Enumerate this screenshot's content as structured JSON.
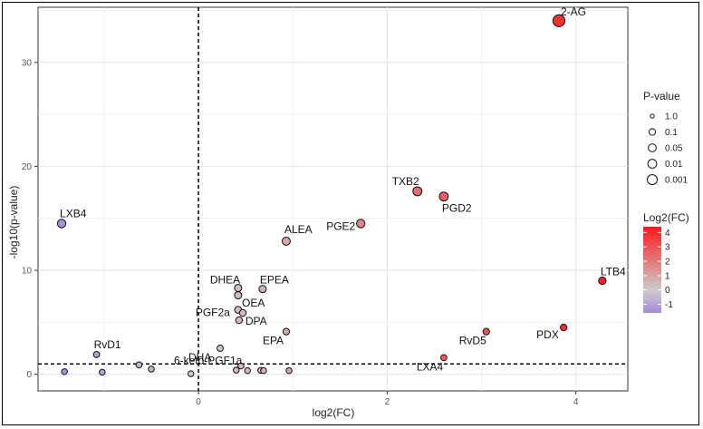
{
  "chart_data": {
    "type": "scatter",
    "xlabel": "log2(FC)",
    "ylabel": "-log10(p-value)",
    "xlim": [
      -1.7,
      4.55
    ],
    "ylim": [
      -1.6,
      35.3
    ],
    "xticks": [
      0,
      2,
      4
    ],
    "yticks": [
      0,
      10,
      20,
      30
    ],
    "xtick_labels": [
      "0",
      "2",
      "4"
    ],
    "ytick_labels": [
      "0",
      "10",
      "20",
      "30"
    ],
    "grid": true,
    "ref_lines": {
      "x": 0,
      "y": 1.0
    },
    "points": [
      {
        "x": 3.82,
        "y": 34.0,
        "label": "2-AG"
      },
      {
        "x": -1.45,
        "y": 14.5,
        "label": "LXB4"
      },
      {
        "x": 2.32,
        "y": 17.6,
        "label": "TXB2"
      },
      {
        "x": 2.6,
        "y": 17.1,
        "label": "PGD2"
      },
      {
        "x": 1.72,
        "y": 14.5,
        "label": "PGE2"
      },
      {
        "x": 0.93,
        "y": 12.8,
        "label": "ALEA"
      },
      {
        "x": 4.28,
        "y": 9.0,
        "label": "LTB4"
      },
      {
        "x": 0.42,
        "y": 8.3,
        "label": "DHEA"
      },
      {
        "x": 0.68,
        "y": 8.2,
        "label": "EPEA"
      },
      {
        "x": 0.42,
        "y": 7.6,
        "label": ""
      },
      {
        "x": 0.42,
        "y": 6.2,
        "label": "PGF2a"
      },
      {
        "x": 0.47,
        "y": 5.9,
        "label": "OEA"
      },
      {
        "x": 0.43,
        "y": 5.2,
        "label": "DPA"
      },
      {
        "x": 0.93,
        "y": 4.1,
        "label": "EPA"
      },
      {
        "x": 3.05,
        "y": 4.1,
        "label": "RvD5"
      },
      {
        "x": 3.87,
        "y": 4.5,
        "label": "PDX"
      },
      {
        "x": 0.23,
        "y": 2.5,
        "label": "DHA"
      },
      {
        "x": -1.08,
        "y": 1.9,
        "label": "RvD1"
      },
      {
        "x": 2.6,
        "y": 1.6,
        "label": "LXA4"
      },
      {
        "x": 0.45,
        "y": 0.8,
        "label": "6-keto-PGF1a"
      },
      {
        "x": -0.63,
        "y": 0.9,
        "label": ""
      },
      {
        "x": -0.5,
        "y": 0.5,
        "label": ""
      },
      {
        "x": -1.42,
        "y": 0.25,
        "label": ""
      },
      {
        "x": -1.02,
        "y": 0.2,
        "label": ""
      },
      {
        "x": -0.08,
        "y": 0.05,
        "label": ""
      },
      {
        "x": 0.4,
        "y": 0.4,
        "label": ""
      },
      {
        "x": 0.52,
        "y": 0.35,
        "label": ""
      },
      {
        "x": 0.66,
        "y": 0.38,
        "label": ""
      },
      {
        "x": 0.69,
        "y": 0.35,
        "label": ""
      },
      {
        "x": 0.96,
        "y": 0.35,
        "label": ""
      }
    ],
    "legend": {
      "placement": "right",
      "size": {
        "title": "P-value",
        "entries": [
          "1.0",
          "0.1",
          "0.05",
          "0.01",
          "0.001"
        ]
      },
      "color": {
        "title": "Log2(FC)",
        "ticks": [
          "4",
          "3",
          "2",
          "1",
          "0",
          "-1"
        ],
        "range": [
          -1.6,
          4.4
        ],
        "low_color": "#a78bd8",
        "mid_color": "#cccccc",
        "high_color": "#ff1a1a"
      }
    }
  }
}
